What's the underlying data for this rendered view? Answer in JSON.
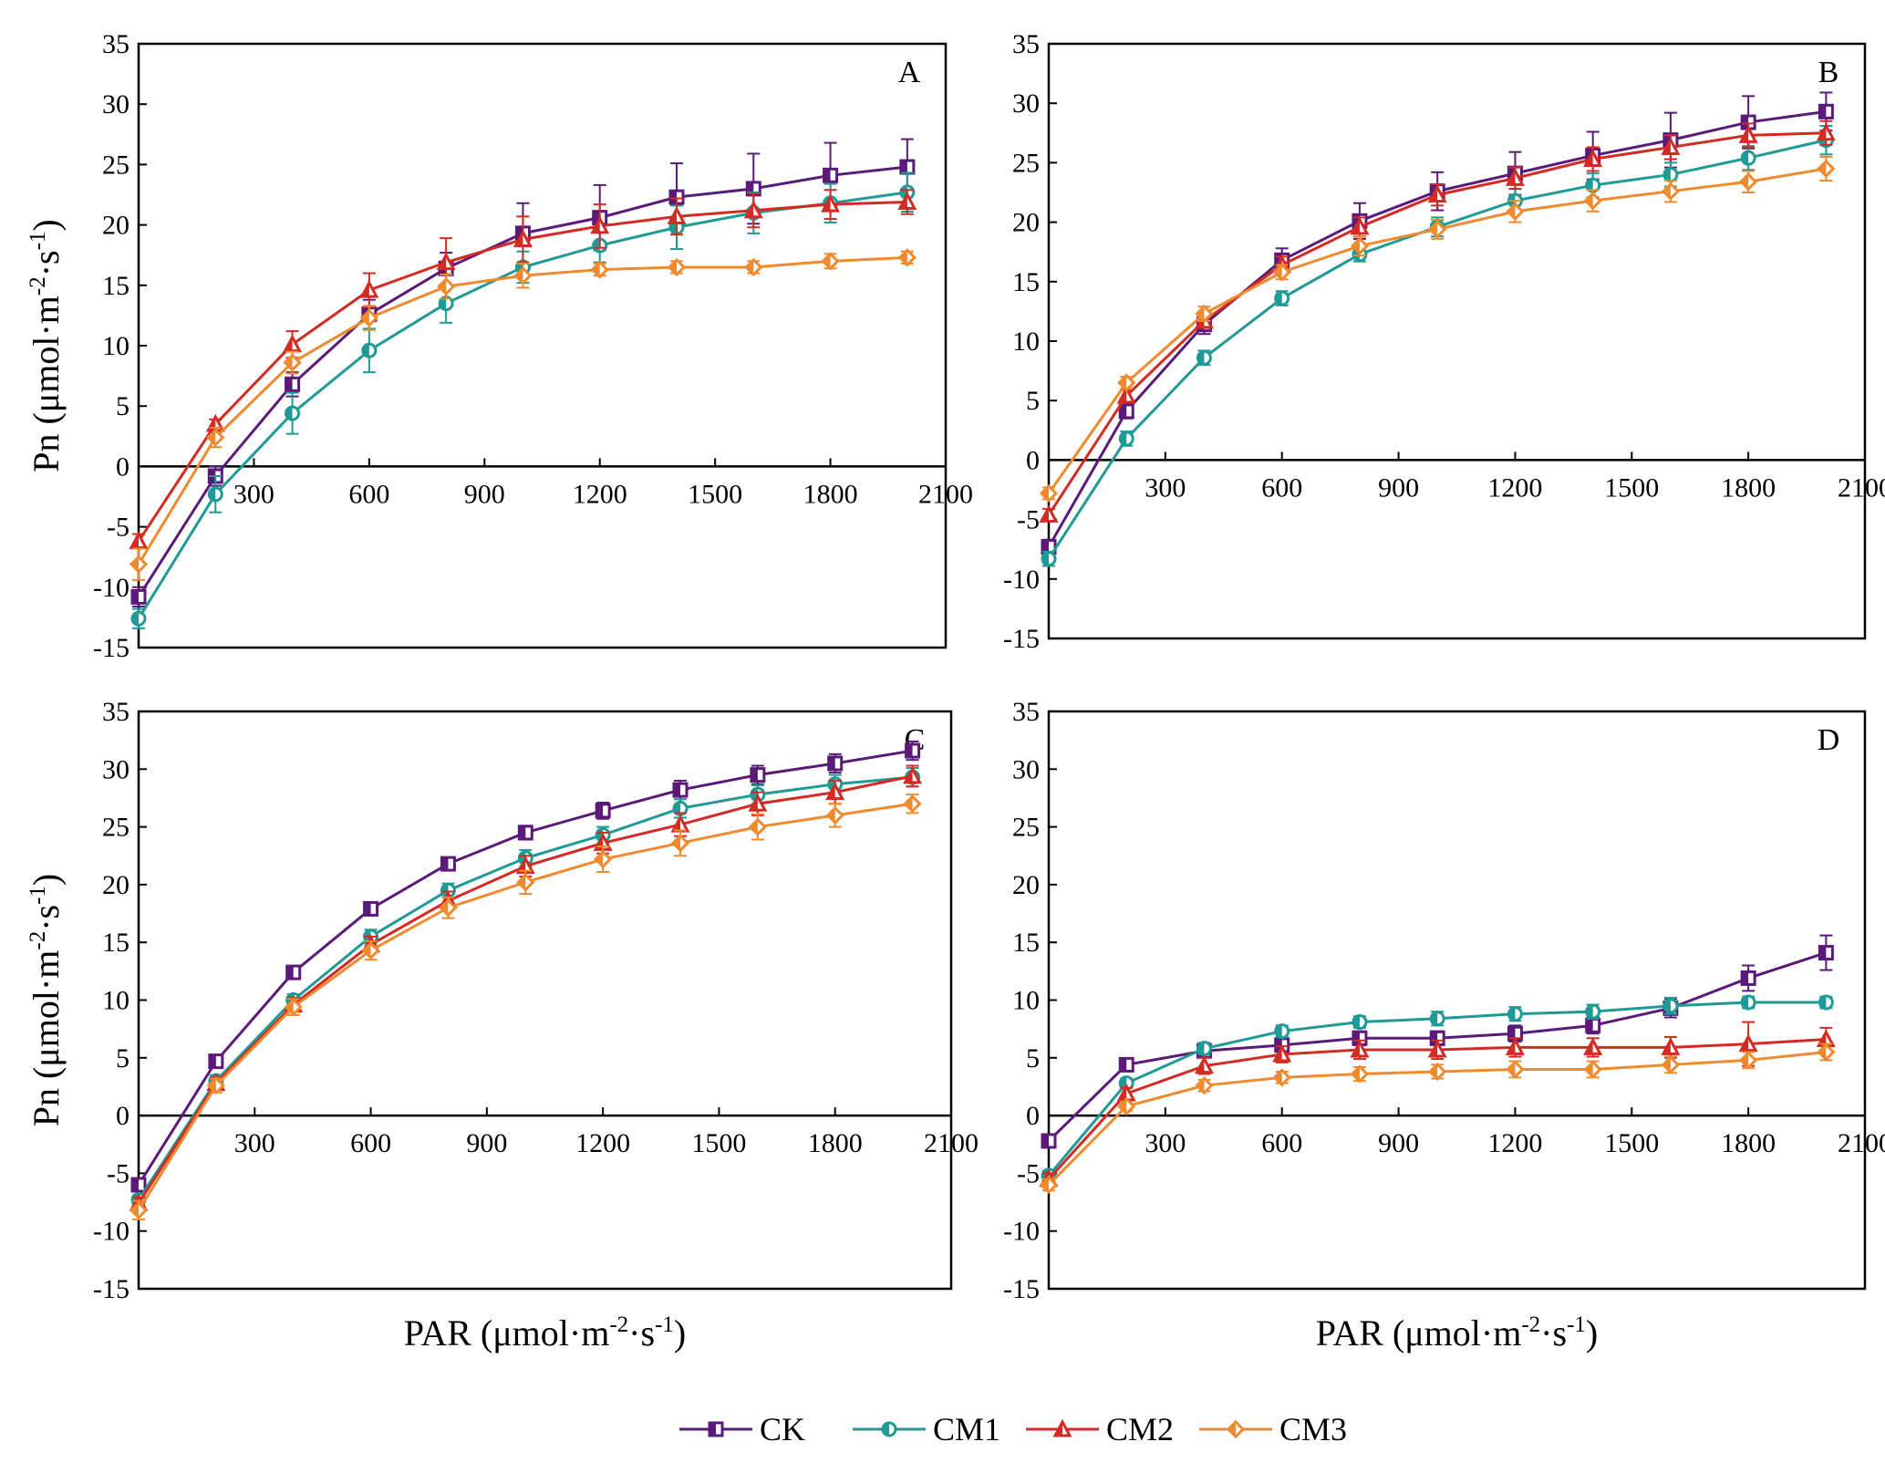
{
  "chart_data": [
    {
      "panel": "A",
      "type": "line",
      "x": [
        0,
        200,
        400,
        600,
        800,
        1000,
        1200,
        1400,
        1600,
        1800,
        2000
      ],
      "series": [
        {
          "name": "CK",
          "values": [
            -10.8,
            -0.8,
            6.8,
            12.6,
            16.4,
            19.3,
            20.6,
            22.3,
            23.0,
            24.1,
            24.8
          ],
          "errors": [
            0.8,
            0.8,
            1.0,
            1.2,
            1.3,
            2.5,
            2.7,
            2.8,
            2.9,
            2.7,
            2.3
          ]
        },
        {
          "name": "CM1",
          "values": [
            -12.6,
            -2.3,
            4.4,
            9.6,
            13.5,
            16.5,
            18.3,
            19.8,
            21.0,
            21.8,
            22.7
          ],
          "errors": [
            0.8,
            1.5,
            1.7,
            1.8,
            1.6,
            1.3,
            1.4,
            1.8,
            1.7,
            1.6,
            1.6
          ]
        },
        {
          "name": "CM2",
          "values": [
            -6.2,
            3.5,
            10.1,
            14.6,
            16.9,
            18.8,
            19.9,
            20.7,
            21.2,
            21.7,
            21.9
          ],
          "errors": [
            0.6,
            0.4,
            1.1,
            1.4,
            2.0,
            1.9,
            1.8,
            1.5,
            1.4,
            1.2,
            1.0
          ]
        },
        {
          "name": "CM3",
          "values": [
            -8.1,
            2.4,
            8.6,
            12.3,
            14.9,
            15.8,
            16.3,
            16.5,
            16.5,
            17.0,
            17.3
          ],
          "errors": [
            1.3,
            0.8,
            0.9,
            1.0,
            1.0,
            1.0,
            0.5,
            0.5,
            0.5,
            0.6,
            0.5
          ]
        }
      ],
      "xlabel": "",
      "ylabel": "Pn (μmol·m⁻²·s⁻¹)",
      "xticks": [
        300,
        600,
        900,
        1200,
        1500,
        1800,
        2100
      ],
      "yticks": [
        -15,
        -10,
        -5,
        0,
        5,
        10,
        15,
        20,
        25,
        30,
        35
      ],
      "xlim": [
        0,
        2100
      ],
      "ylim": [
        -15,
        35
      ]
    },
    {
      "panel": "B",
      "type": "line",
      "x": [
        0,
        200,
        400,
        600,
        800,
        1000,
        1200,
        1400,
        1600,
        1800,
        2000
      ],
      "series": [
        {
          "name": "CK",
          "values": [
            -7.3,
            4.1,
            11.4,
            16.8,
            20.1,
            22.6,
            24.1,
            25.6,
            26.9,
            28.4,
            29.3
          ],
          "errors": [
            0.6,
            0.6,
            0.8,
            1.0,
            1.5,
            1.6,
            1.8,
            2.0,
            2.3,
            2.2,
            1.6
          ]
        },
        {
          "name": "CM1",
          "values": [
            -8.3,
            1.8,
            8.6,
            13.6,
            17.3,
            19.6,
            21.8,
            23.1,
            24.0,
            25.4,
            26.9
          ],
          "errors": [
            0.6,
            0.6,
            0.6,
            0.6,
            0.6,
            0.8,
            1.0,
            1.0,
            1.0,
            1.0,
            1.2
          ]
        },
        {
          "name": "CM2",
          "values": [
            -4.6,
            5.4,
            11.7,
            16.4,
            19.6,
            22.3,
            23.7,
            25.3,
            26.3,
            27.3,
            27.5
          ],
          "errors": [
            0.5,
            0.5,
            0.6,
            0.7,
            0.8,
            0.9,
            0.9,
            1.0,
            1.0,
            1.0,
            1.0
          ]
        },
        {
          "name": "CM3",
          "values": [
            -2.8,
            6.5,
            12.3,
            15.8,
            18.0,
            19.4,
            20.9,
            21.8,
            22.6,
            23.4,
            24.5
          ],
          "errors": [
            0.5,
            0.5,
            0.6,
            0.6,
            0.8,
            0.8,
            0.9,
            0.9,
            0.9,
            0.9,
            1.0
          ]
        }
      ],
      "xlabel": "",
      "ylabel": "",
      "xticks": [
        300,
        600,
        900,
        1200,
        1500,
        1800,
        2100
      ],
      "yticks": [
        -15,
        -10,
        -5,
        0,
        5,
        10,
        15,
        20,
        25,
        30,
        35
      ],
      "xlim": [
        0,
        2100
      ],
      "ylim": [
        -15,
        35
      ]
    },
    {
      "panel": "C",
      "type": "line",
      "x": [
        0,
        200,
        400,
        600,
        800,
        1000,
        1200,
        1400,
        1600,
        1800,
        2000
      ],
      "series": [
        {
          "name": "CK",
          "values": [
            -6.0,
            4.7,
            12.4,
            17.9,
            21.8,
            24.5,
            26.4,
            28.2,
            29.5,
            30.5,
            31.6
          ],
          "errors": [
            0.4,
            0.5,
            0.5,
            0.5,
            0.5,
            0.6,
            0.7,
            0.8,
            0.8,
            0.8,
            0.8
          ]
        },
        {
          "name": "CM1",
          "values": [
            -7.3,
            3.0,
            10.0,
            15.5,
            19.5,
            22.3,
            24.3,
            26.6,
            27.8,
            28.7,
            29.3
          ],
          "errors": [
            0.4,
            0.5,
            0.5,
            0.6,
            0.6,
            0.7,
            0.7,
            0.8,
            0.8,
            0.8,
            0.8
          ]
        },
        {
          "name": "CM2",
          "values": [
            -7.6,
            2.8,
            9.6,
            14.8,
            18.6,
            21.6,
            23.6,
            25.2,
            27.0,
            28.0,
            29.4
          ],
          "errors": [
            0.5,
            0.5,
            0.6,
            0.7,
            0.8,
            0.9,
            0.9,
            1.0,
            1.0,
            1.0,
            0.9
          ]
        },
        {
          "name": "CM3",
          "values": [
            -8.2,
            2.6,
            9.4,
            14.3,
            18.0,
            20.2,
            22.2,
            23.6,
            25.0,
            26.0,
            27.0
          ],
          "errors": [
            0.8,
            0.6,
            0.7,
            0.8,
            0.9,
            1.0,
            1.1,
            1.1,
            1.1,
            1.0,
            0.8
          ]
        }
      ],
      "xlabel": "PAR (μmol·m⁻²·s⁻¹)",
      "ylabel": "Pn (μmol·m⁻²·s⁻¹)",
      "xticks": [
        300,
        600,
        900,
        1200,
        1500,
        1800,
        2100
      ],
      "yticks": [
        -15,
        -10,
        -5,
        0,
        5,
        10,
        15,
        20,
        25,
        30,
        35
      ],
      "xlim": [
        0,
        2100
      ],
      "ylim": [
        -15,
        35
      ]
    },
    {
      "panel": "D",
      "type": "line",
      "x": [
        0,
        200,
        400,
        600,
        800,
        1000,
        1200,
        1400,
        1600,
        1800,
        2000
      ],
      "series": [
        {
          "name": "CK",
          "values": [
            -2.2,
            4.4,
            5.6,
            6.1,
            6.7,
            6.7,
            7.1,
            7.8,
            9.3,
            11.9,
            14.1
          ],
          "errors": [
            0.4,
            0.4,
            0.5,
            0.5,
            0.6,
            0.6,
            0.7,
            0.7,
            0.8,
            1.1,
            1.5
          ]
        },
        {
          "name": "CM1",
          "values": [
            -5.2,
            2.8,
            5.8,
            7.3,
            8.1,
            8.4,
            8.8,
            9.0,
            9.5,
            9.8,
            9.8
          ],
          "errors": [
            0.4,
            0.4,
            0.5,
            0.5,
            0.5,
            0.6,
            0.6,
            0.6,
            0.7,
            0.5,
            0.5
          ]
        },
        {
          "name": "CM2",
          "values": [
            -5.5,
            1.9,
            4.3,
            5.3,
            5.7,
            5.7,
            5.9,
            5.9,
            5.9,
            6.2,
            6.6
          ],
          "errors": [
            0.5,
            0.5,
            0.7,
            0.7,
            0.8,
            0.8,
            0.8,
            0.8,
            0.9,
            1.9,
            1.0
          ]
        },
        {
          "name": "CM3",
          "values": [
            -6.0,
            0.8,
            2.6,
            3.3,
            3.6,
            3.8,
            4.0,
            4.0,
            4.4,
            4.8,
            5.5
          ],
          "errors": [
            0.5,
            0.4,
            0.5,
            0.5,
            0.6,
            0.6,
            0.7,
            0.7,
            0.7,
            0.7,
            0.7
          ]
        }
      ],
      "xlabel": "PAR (μmol·m⁻²·s⁻¹)",
      "ylabel": "",
      "xticks": [
        300,
        600,
        900,
        1200,
        1500,
        1800,
        2100
      ],
      "yticks": [
        -15,
        -10,
        -5,
        0,
        5,
        10,
        15,
        20,
        25,
        30,
        35
      ],
      "xlim": [
        0,
        2100
      ],
      "ylim": [
        -15,
        35
      ]
    }
  ],
  "legend": [
    {
      "name": "CK",
      "color": "#5b1a7a",
      "marker": "square"
    },
    {
      "name": "CM1",
      "color": "#1f9a96",
      "marker": "circle"
    },
    {
      "name": "CM2",
      "color": "#d42a24",
      "marker": "triangle"
    },
    {
      "name": "CM3",
      "color": "#f08a2e",
      "marker": "diamond"
    }
  ]
}
